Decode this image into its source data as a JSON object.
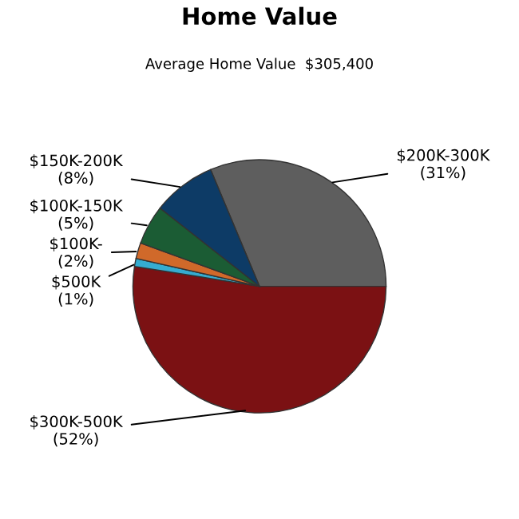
{
  "chart_data": {
    "type": "pie",
    "title": "Home Value",
    "subtitle": "Average Home Value  $305,400",
    "categories": [
      "$200K-300K",
      "$300K-500K",
      "$500K",
      "$100K-",
      "$100K-150K",
      "$150K-200K"
    ],
    "values": [
      31,
      52,
      1,
      2,
      5,
      8
    ],
    "value_labels": [
      "(31%)",
      "(52%)",
      "(1%)",
      "(2%)",
      "(5%)",
      "(8%)"
    ],
    "colors": [
      "#5e5e5e",
      "#7b1113",
      "#35acd0",
      "#d0692a",
      "#1b5c34",
      "#0d3b66"
    ]
  }
}
